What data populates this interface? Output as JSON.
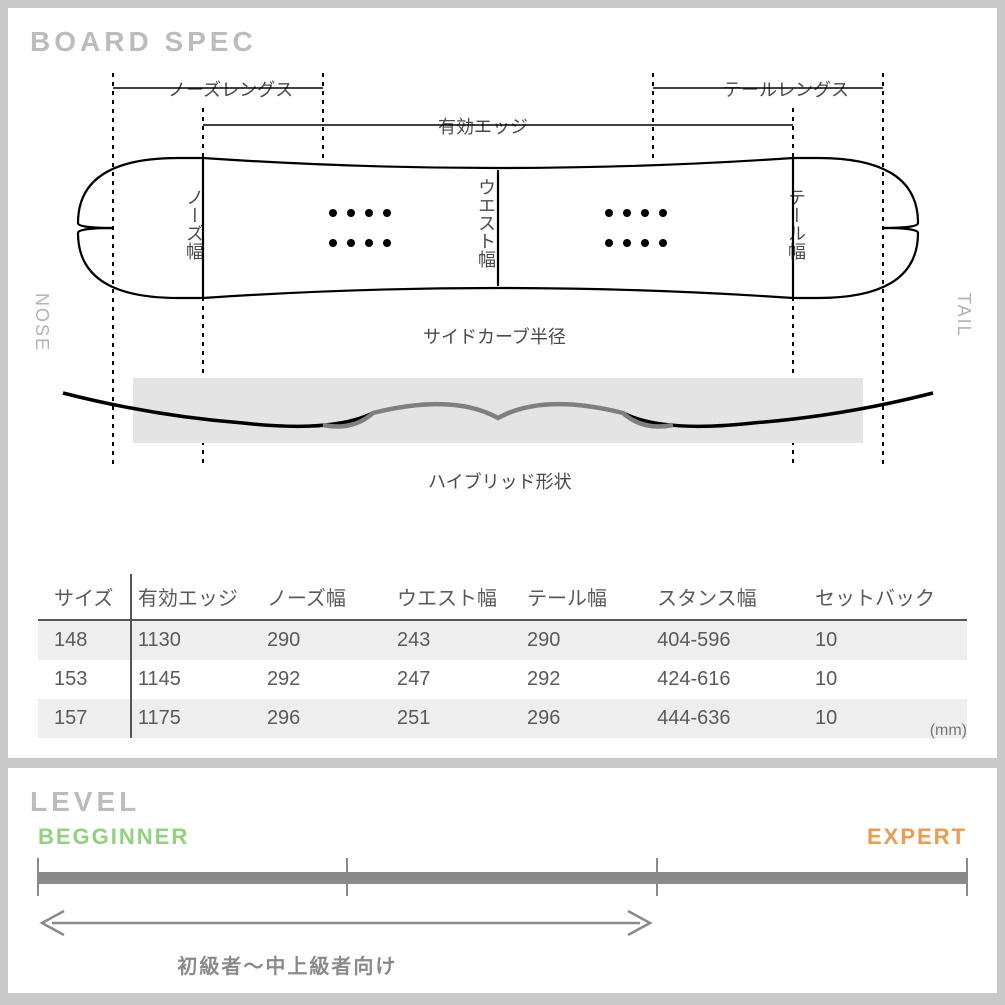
{
  "spec": {
    "title": "BOARD SPEC",
    "labels": {
      "nose_length": "ノーズレングス",
      "effective_edge": "有効エッジ",
      "tail_length": "テールレングス",
      "nose_width": "ノーズ幅",
      "waist_width": "ウエスト幅",
      "tail_width": "テール幅",
      "sidecurve_radius": "サイドカーブ半径",
      "hybrid_shape": "ハイブリッド形状",
      "nose_side": "NOSE",
      "tail_side": "TAIL"
    },
    "diagram_style": {
      "outline_color": "#000000",
      "outline_width": 2,
      "dash_color": "#000000",
      "dash_pattern": "4,5",
      "profile_band_bg": "#e4e4e4",
      "profile_accent": "#7f7f7f",
      "insert_dot_color": "#000000",
      "insert_dot_radius": 4
    },
    "table": {
      "columns": [
        "サイズ",
        "有効エッジ",
        "ノーズ幅",
        "ウエスト幅",
        "テール幅",
        "スタンス幅",
        "セットバック"
      ],
      "rows": [
        [
          "148",
          "1130",
          "290",
          "243",
          "290",
          "404-596",
          "10"
        ],
        [
          "153",
          "1145",
          "292",
          "247",
          "292",
          "424-616",
          "10"
        ],
        [
          "157",
          "1175",
          "296",
          "251",
          "296",
          "444-636",
          "10"
        ]
      ],
      "unit": "(mm)",
      "row_stripe_bg": "#efeeee",
      "border_color": "#555555",
      "col_widths_pct": [
        10,
        14,
        14,
        14,
        14,
        17,
        17
      ]
    }
  },
  "level": {
    "title": "LEVEL",
    "beginner_label": "BEGGINNER",
    "expert_label": "EXPERT",
    "range_text": "初級者〜中上級者向け",
    "bar_color": "#8a8a8a",
    "beginner_color": "#8ed47a",
    "expert_color": "#f2994a",
    "tick_positions_pct": [
      0,
      33.3,
      66.6,
      100
    ],
    "arrow_extent_pct": 66.6,
    "range_text_left_pct": 15
  }
}
